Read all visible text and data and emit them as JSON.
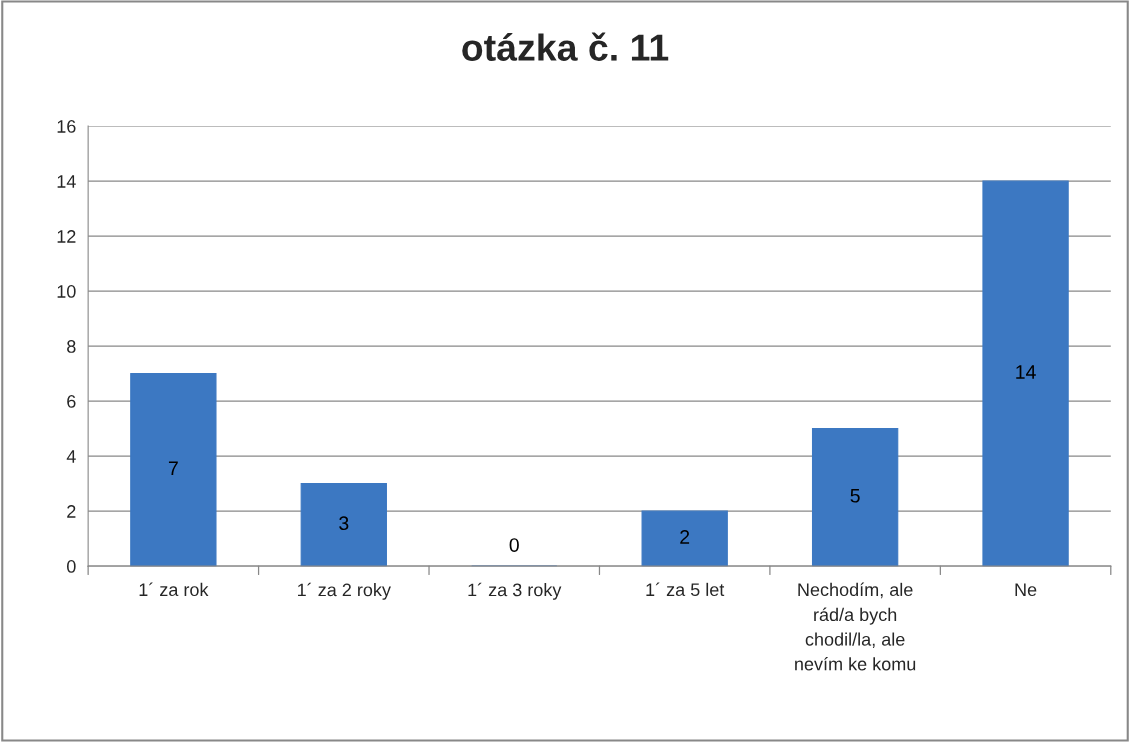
{
  "chart_data": {
    "type": "bar",
    "title": "otázka č. 11",
    "categories": [
      "1´ za rok",
      "1´ za 2 roky",
      "1´ za 3 roky",
      "1´ za 5 let",
      "Nechodím, ale\nrád/a bych\nchodil/la, ale\nnevím ke komu",
      "Ne"
    ],
    "values": [
      7,
      3,
      0,
      2,
      5,
      14
    ],
    "color": "#3c78c2",
    "ylim": [
      0,
      16
    ],
    "yticks": [
      0,
      2,
      4,
      6,
      8,
      10,
      12,
      14,
      16
    ],
    "grid": "y",
    "data_labels": true,
    "legend": false
  }
}
